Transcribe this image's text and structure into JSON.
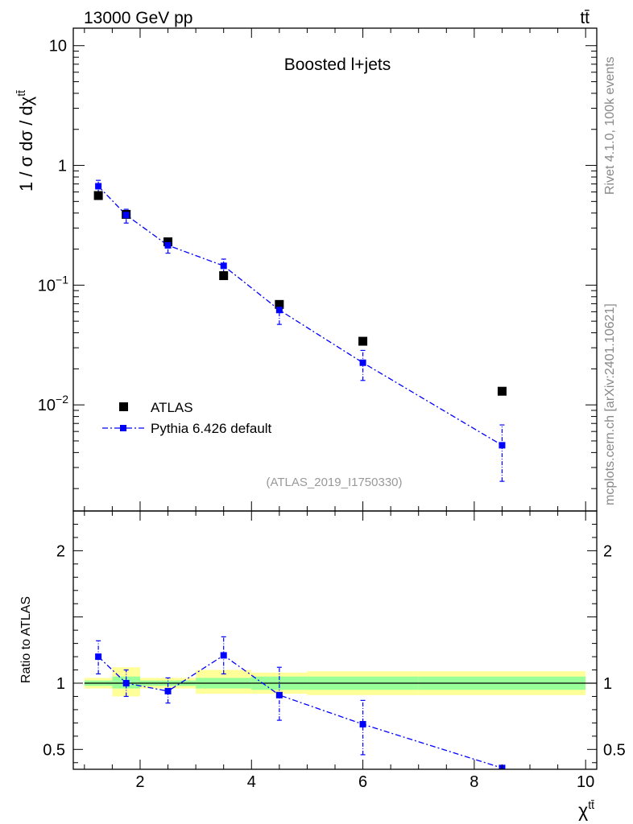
{
  "header": {
    "energy_label": "13000 GeV pp",
    "process_label": "tt̄"
  },
  "side_labels": {
    "rivet": "Rivet 4.1.0,  100k events",
    "mcplots": "mcplots.cern.ch [arXiv:2401.10621]"
  },
  "chart_data": [
    {
      "type": "scatter",
      "panel": "main",
      "title": "Boosted l+jets",
      "xlabel": "χ^tt̄",
      "ylabel": "1 / σ dσ / dχ^tt̄",
      "yscale": "log",
      "xlim": [
        0.8,
        10.2
      ],
      "ylim": [
        0.0013,
        14
      ],
      "y_tick_labels": [
        "10",
        "1",
        "10^-1",
        "10^-2"
      ],
      "watermark": "(ATLAS_2019_I1750330)",
      "legend": {
        "position": "bottom-left",
        "entries": [
          "ATLAS",
          "Pythia 6.426 default"
        ]
      },
      "series": [
        {
          "name": "ATLAS",
          "color": "#000000",
          "x": [
            1.25,
            1.75,
            2.5,
            3.5,
            4.5,
            6.0,
            8.5
          ],
          "y": [
            0.56,
            0.39,
            0.23,
            0.12,
            0.069,
            0.034,
            0.013
          ]
        },
        {
          "name": "Pythia 6.426 default",
          "color": "#0000ff",
          "x": [
            1.25,
            1.75,
            2.5,
            3.5,
            4.5,
            6.0,
            8.5
          ],
          "y": [
            0.67,
            0.385,
            0.215,
            0.145,
            0.062,
            0.0225,
            0.0046
          ],
          "y_err_low": [
            0.58,
            0.33,
            0.185,
            0.125,
            0.047,
            0.016,
            0.0023
          ],
          "y_err_high": [
            0.75,
            0.43,
            0.245,
            0.165,
            0.074,
            0.0285,
            0.0068
          ]
        }
      ]
    },
    {
      "type": "line",
      "panel": "ratio",
      "xlabel": "χ^tt̄",
      "ylabel": "Ratio to ATLAS",
      "xlim": [
        0.8,
        10.2
      ],
      "ylim": [
        0.35,
        2.3
      ],
      "x_ticks": [
        2,
        4,
        6,
        8,
        10
      ],
      "y_ticks": [
        0.5,
        1,
        2
      ],
      "bands": {
        "bins": [
          [
            1.0,
            1.5
          ],
          [
            1.5,
            2.0
          ],
          [
            2.0,
            3.0
          ],
          [
            3.0,
            4.0
          ],
          [
            4.0,
            5.0
          ],
          [
            5.0,
            7.0
          ],
          [
            7.0,
            10.0
          ]
        ],
        "inner_low": [
          0.98,
          0.96,
          0.98,
          0.96,
          0.95,
          0.95,
          0.95
        ],
        "inner_high": [
          1.02,
          1.05,
          1.02,
          1.04,
          1.05,
          1.05,
          1.05
        ],
        "outer_low": [
          0.96,
          0.9,
          0.96,
          0.92,
          0.92,
          0.91,
          0.91
        ],
        "outer_high": [
          1.04,
          1.12,
          1.04,
          1.1,
          1.08,
          1.09,
          1.09
        ]
      },
      "series": [
        {
          "name": "Pythia 6.426 default",
          "color": "#0000ff",
          "x": [
            1.25,
            1.75,
            2.5,
            3.5,
            4.5,
            6.0,
            8.5
          ],
          "y": [
            1.2,
            1.0,
            0.94,
            1.21,
            0.91,
            0.69,
            0.36
          ],
          "y_err_low": [
            1.07,
            0.9,
            0.85,
            1.07,
            0.72,
            0.46,
            null
          ],
          "y_err_high": [
            1.32,
            1.1,
            1.04,
            1.35,
            1.12,
            0.87,
            null
          ]
        }
      ]
    }
  ]
}
